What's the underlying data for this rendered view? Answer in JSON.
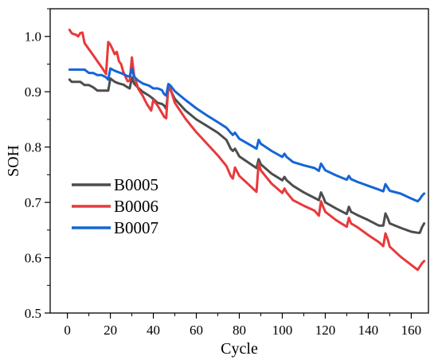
{
  "chart_data": {
    "type": "line",
    "title": "",
    "xlabel": "Cycle",
    "ylabel": "SOH",
    "xlim": [
      -8,
      168
    ],
    "ylim": [
      0.5,
      1.05
    ],
    "xticks": [
      0,
      20,
      40,
      60,
      80,
      100,
      120,
      140,
      160
    ],
    "yticks": [
      0.5,
      0.6,
      0.7,
      0.8,
      0.9,
      1.0
    ],
    "ytick_labels": [
      "0.5",
      "0.6",
      "0.7",
      "0.8",
      "0.9",
      "1.0"
    ],
    "grid": false,
    "legend_position": "lower-left",
    "series": [
      {
        "name": "B0005",
        "color": "#4d4d4d",
        "x": [
          1,
          2,
          4,
          6,
          8,
          10,
          12,
          14,
          15,
          17,
          19,
          20,
          22,
          24,
          26,
          28,
          29,
          30,
          31,
          33,
          35,
          38,
          40,
          42,
          44,
          45,
          46,
          47,
          48,
          50,
          55,
          60,
          65,
          70,
          74,
          76,
          77,
          78,
          80,
          85,
          88,
          89,
          90,
          95,
          100,
          101,
          102,
          105,
          110,
          115,
          117,
          118,
          119,
          120,
          125,
          130,
          131,
          132,
          135,
          140,
          145,
          147,
          148,
          149,
          150,
          155,
          160,
          163,
          164,
          165,
          166
        ],
        "y": [
          0.922,
          0.918,
          0.918,
          0.918,
          0.912,
          0.912,
          0.908,
          0.902,
          0.902,
          0.902,
          0.902,
          0.924,
          0.918,
          0.915,
          0.913,
          0.908,
          0.906,
          0.926,
          0.915,
          0.907,
          0.9,
          0.893,
          0.887,
          0.88,
          0.878,
          0.875,
          0.869,
          0.906,
          0.903,
          0.887,
          0.866,
          0.85,
          0.838,
          0.826,
          0.813,
          0.797,
          0.793,
          0.797,
          0.783,
          0.77,
          0.762,
          0.778,
          0.769,
          0.752,
          0.74,
          0.746,
          0.74,
          0.73,
          0.718,
          0.708,
          0.704,
          0.718,
          0.71,
          0.7,
          0.689,
          0.679,
          0.692,
          0.683,
          0.677,
          0.668,
          0.658,
          0.658,
          0.68,
          0.672,
          0.662,
          0.654,
          0.647,
          0.645,
          0.645,
          0.655,
          0.662
        ]
      },
      {
        "name": "B0006",
        "color": "#e8393b",
        "x": [
          1,
          2,
          3,
          4,
          5,
          6,
          7,
          8,
          10,
          12,
          14,
          16,
          18,
          19,
          20,
          21,
          22,
          23,
          24,
          25,
          26,
          28,
          29,
          30,
          31,
          33,
          35,
          37,
          39,
          40,
          42,
          44,
          45,
          46,
          47,
          48,
          50,
          55,
          60,
          65,
          70,
          74,
          76,
          77,
          78,
          80,
          85,
          88,
          89,
          90,
          95,
          100,
          101,
          102,
          105,
          110,
          115,
          117,
          118,
          119,
          120,
          125,
          130,
          131,
          132,
          135,
          140,
          145,
          147,
          148,
          149,
          150,
          155,
          160,
          163,
          164,
          165,
          166
        ],
        "y": [
          1.012,
          1.006,
          1.004,
          1.003,
          1.0,
          1.006,
          1.007,
          0.988,
          0.977,
          0.966,
          0.955,
          0.944,
          0.932,
          0.99,
          0.985,
          0.977,
          0.968,
          0.972,
          0.955,
          0.95,
          0.936,
          0.919,
          0.92,
          0.962,
          0.93,
          0.905,
          0.893,
          0.878,
          0.866,
          0.885,
          0.875,
          0.862,
          0.855,
          0.852,
          0.912,
          0.905,
          0.88,
          0.851,
          0.827,
          0.806,
          0.785,
          0.766,
          0.748,
          0.743,
          0.763,
          0.748,
          0.73,
          0.719,
          0.771,
          0.758,
          0.734,
          0.717,
          0.725,
          0.718,
          0.704,
          0.694,
          0.685,
          0.676,
          0.702,
          0.692,
          0.683,
          0.668,
          0.656,
          0.672,
          0.662,
          0.655,
          0.641,
          0.628,
          0.621,
          0.644,
          0.634,
          0.62,
          0.602,
          0.587,
          0.578,
          0.584,
          0.59,
          0.594
        ]
      },
      {
        "name": "B0007",
        "color": "#1565d6",
        "x": [
          1,
          2,
          4,
          6,
          8,
          10,
          12,
          14,
          16,
          18,
          19,
          20,
          22,
          24,
          26,
          28,
          29,
          30,
          31,
          33,
          35,
          38,
          40,
          42,
          44,
          45,
          46,
          47,
          48,
          50,
          55,
          60,
          65,
          70,
          74,
          76,
          77,
          78,
          80,
          85,
          88,
          89,
          90,
          95,
          100,
          101,
          102,
          105,
          110,
          115,
          117,
          118,
          119,
          120,
          125,
          130,
          131,
          132,
          135,
          140,
          145,
          147,
          148,
          149,
          150,
          155,
          160,
          163,
          164,
          165,
          166
        ],
        "y": [
          0.94,
          0.94,
          0.94,
          0.94,
          0.94,
          0.934,
          0.934,
          0.93,
          0.93,
          0.926,
          0.922,
          0.942,
          0.938,
          0.935,
          0.932,
          0.928,
          0.928,
          0.942,
          0.927,
          0.92,
          0.915,
          0.911,
          0.906,
          0.906,
          0.903,
          0.896,
          0.893,
          0.914,
          0.911,
          0.901,
          0.885,
          0.87,
          0.857,
          0.845,
          0.835,
          0.826,
          0.822,
          0.826,
          0.815,
          0.804,
          0.797,
          0.813,
          0.806,
          0.793,
          0.782,
          0.788,
          0.782,
          0.773,
          0.767,
          0.762,
          0.757,
          0.77,
          0.764,
          0.758,
          0.749,
          0.741,
          0.748,
          0.742,
          0.737,
          0.73,
          0.723,
          0.72,
          0.733,
          0.727,
          0.721,
          0.716,
          0.707,
          0.702,
          0.706,
          0.712,
          0.716
        ]
      }
    ]
  }
}
